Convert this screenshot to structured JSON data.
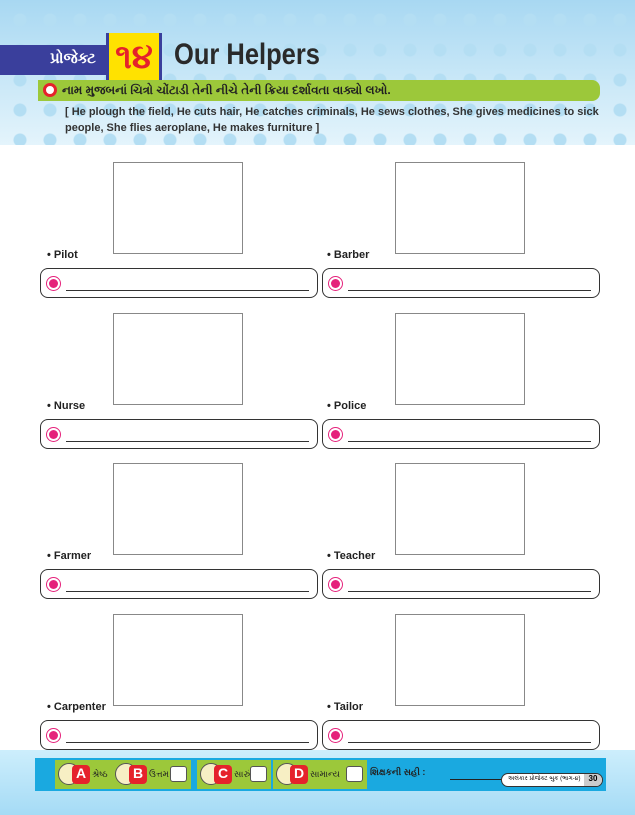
{
  "header": {
    "project_label": "પ્રોજેક્ટ",
    "project_number": "૧૪",
    "title": "Our Helpers"
  },
  "instruction": "નામ મુજબનાં ચિત્રો ચોંટાડી તેની નીચે તેની ક્રિયા દર્શાવતા વાક્યો લખો.",
  "hint": "[ He plough the field, He cuts hair, He catches criminals, He sews clothes, She gives medicines to sick people, She flies aeroplane, He makes furniture ]",
  "helpers": [
    {
      "label": "• Pilot"
    },
    {
      "label": "• Barber"
    },
    {
      "label": "• Nurse"
    },
    {
      "label": "• Police"
    },
    {
      "label": "• Farmer"
    },
    {
      "label": "• Teacher"
    },
    {
      "label": "• Carpenter"
    },
    {
      "label": "• Tailor"
    }
  ],
  "grades": [
    {
      "letter": "A",
      "label": "શ્રેષ્ઠ"
    },
    {
      "letter": "B",
      "label": "ઉત્તમ"
    },
    {
      "letter": "C",
      "label": "સારું"
    },
    {
      "letter": "D",
      "label": "સામાન્ય"
    }
  ],
  "signature_label": "શિક્ષકની સહી :",
  "book_title": "અલંકાર પ્રોજેક્ટ બુક (ભાગ-૪)",
  "page_number": "30"
}
